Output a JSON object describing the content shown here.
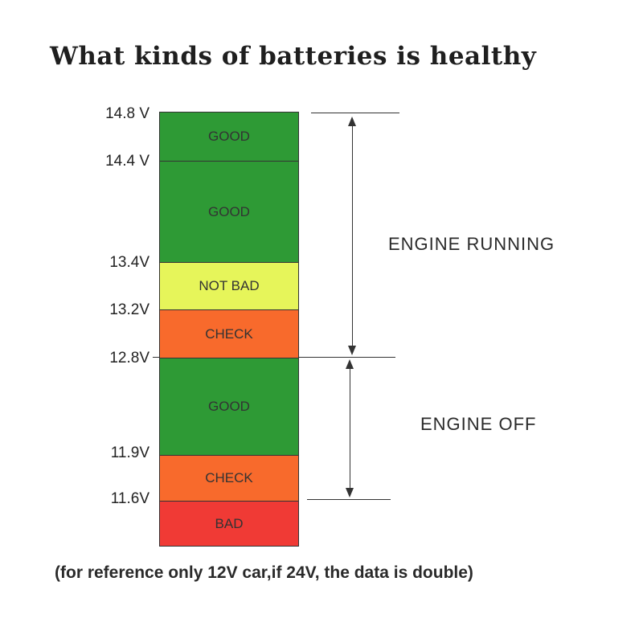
{
  "title": "What kinds of  batteries is healthy",
  "bands": [
    {
      "label": "GOOD",
      "color": "#2e9a35",
      "from_v": "14.8 V",
      "to_v": "14.4 V"
    },
    {
      "label": "GOOD",
      "color": "#2e9a35",
      "from_v": "14.4 V",
      "to_v": "13.4V"
    },
    {
      "label": "NOT BAD",
      "color": "#e6f55a",
      "from_v": "13.4V",
      "to_v": "13.2V"
    },
    {
      "label": "CHECK",
      "color": "#f86a2c",
      "from_v": "13.2V",
      "to_v": "12.8V"
    },
    {
      "label": "GOOD",
      "color": "#2e9a35",
      "from_v": "12.8V",
      "to_v": "11.9V"
    },
    {
      "label": "CHECK",
      "color": "#f86a2c",
      "from_v": "11.9V",
      "to_v": "11.6V"
    },
    {
      "label": "BAD",
      "color": "#f03a35",
      "from_v": "11.6V",
      "to_v": ""
    }
  ],
  "ticks": [
    "14.8 V",
    "14.4 V",
    "13.4V",
    "13.2V",
    "12.8V",
    "11.9V",
    "11.6V"
  ],
  "ranges": [
    {
      "label": "ENGINE RUNNING",
      "from": "14.8 V",
      "to": "12.8V"
    },
    {
      "label": "ENGINE OFF",
      "from": "12.8V",
      "to": "11.6V"
    }
  ],
  "footnote": "(for reference only 12V car,if 24V, the data is double)"
}
